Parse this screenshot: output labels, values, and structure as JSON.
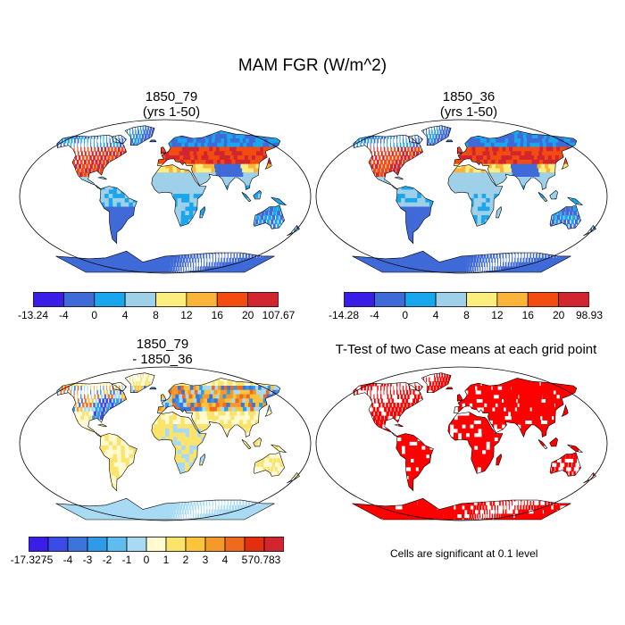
{
  "title": "MAM FGR (W/m^2)",
  "panels": [
    {
      "id": "p1",
      "title_line1": "1850_79",
      "title_line2": "(yrs 1-50)"
    },
    {
      "id": "p2",
      "title_line1": "1850_36",
      "title_line2": "(yrs 1-50)"
    },
    {
      "id": "p3",
      "title_line1": "1850_79",
      "title_line2": "- 1850_36"
    },
    {
      "id": "p4",
      "title_line1": "T-Test of two Case means at each grid point",
      "title_line2": ""
    }
  ],
  "colorbars": [
    {
      "id": "cb1",
      "labels": [
        "-13.24",
        "-4",
        "0",
        "4",
        "8",
        "12",
        "16",
        "20",
        "107.67"
      ],
      "colors": [
        "#3a1ee8",
        "#3f6ad8",
        "#1aa6ec",
        "#9fd0ea",
        "#fcee7e",
        "#fbb43a",
        "#f24c11",
        "#d1262f"
      ]
    },
    {
      "id": "cb2",
      "labels": [
        "-14.28",
        "-4",
        "0",
        "4",
        "8",
        "12",
        "16",
        "20",
        "98.93"
      ],
      "colors": [
        "#3a1ee8",
        "#3f6ad8",
        "#1aa6ec",
        "#9fd0ea",
        "#fcee7e",
        "#fbb43a",
        "#f24c11",
        "#d1262f"
      ]
    },
    {
      "id": "cb3",
      "labels": [
        "-17.327",
        "-5",
        "-4",
        "-3",
        "-2",
        "-1",
        "0",
        "1",
        "2",
        "3",
        "4",
        "5",
        "70.783"
      ],
      "colors": [
        "#3a1ee8",
        "#3c4be8",
        "#3c74dc",
        "#2e9ae8",
        "#5fbcee",
        "#a9daf4",
        "#fffad0",
        "#fce46c",
        "#fbc43a",
        "#f59a28",
        "#f06a1e",
        "#e42e10",
        "#d1262f"
      ]
    }
  ],
  "significance_note": "Cells are significant at 0.1 level",
  "colors": {
    "significant": "#ff0000",
    "outline": "#000000"
  }
}
